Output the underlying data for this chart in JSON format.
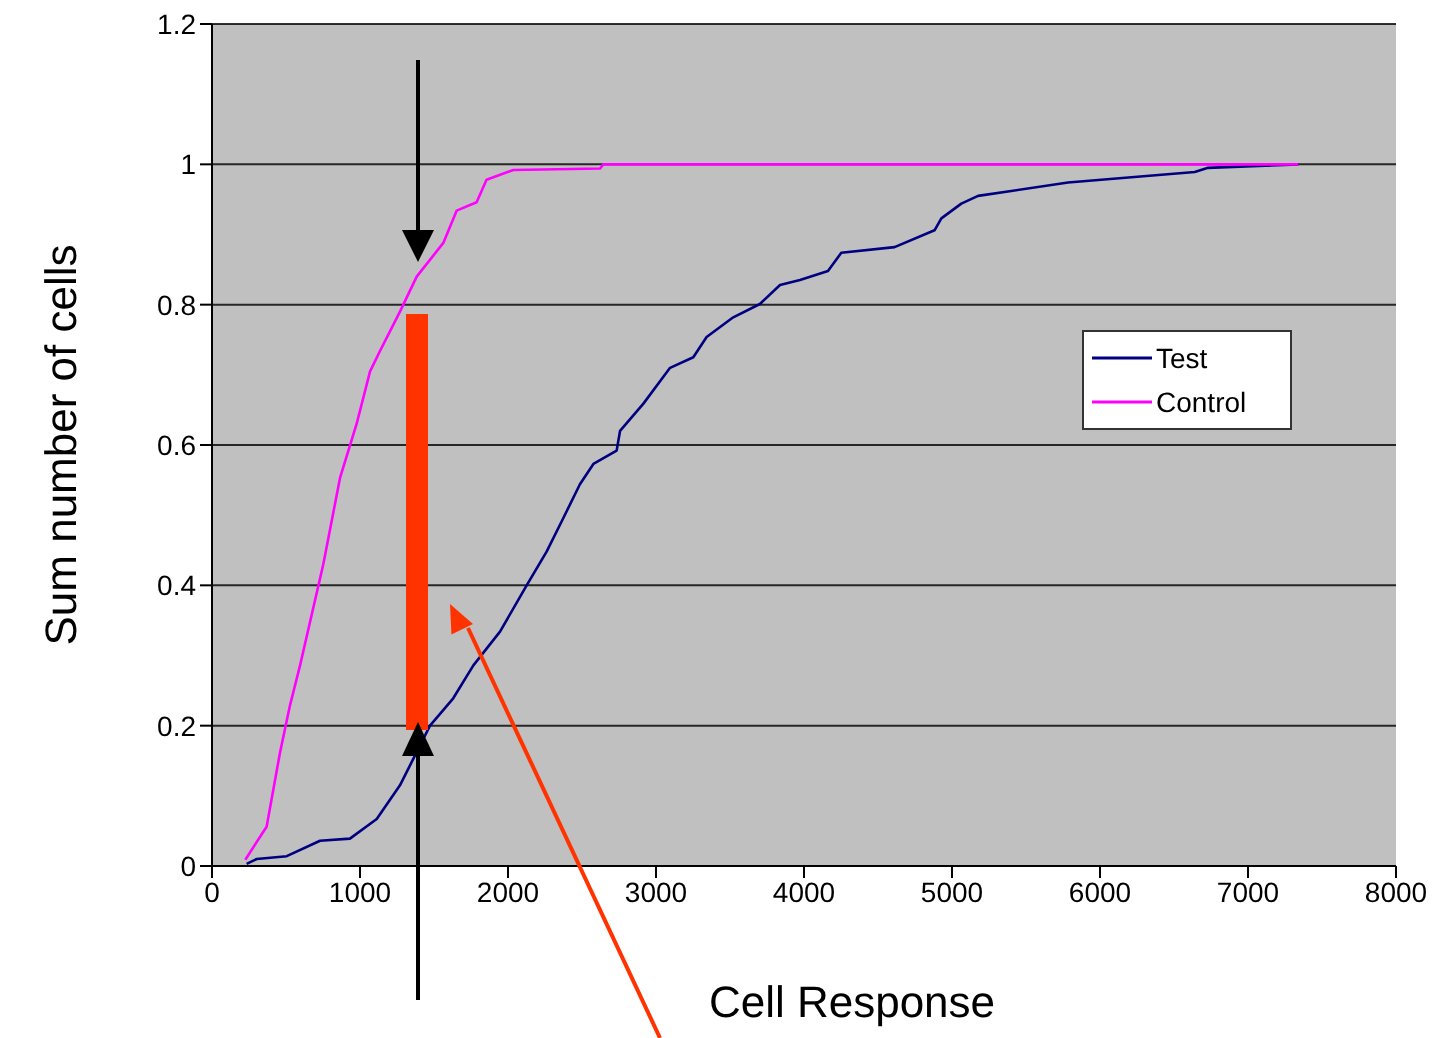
{
  "chart_data": {
    "type": "line",
    "xlabel": "Cell Response",
    "ylabel": "Sum number of cells",
    "xlim": [
      0,
      8000
    ],
    "xticks": [
      0,
      1000,
      2000,
      3000,
      4000,
      5000,
      6000,
      7000,
      8000
    ],
    "ylim": [
      0,
      1.2
    ],
    "yticks": [
      0,
      0.2,
      0.4,
      0.6,
      0.8,
      1,
      1.2
    ],
    "grid": "y",
    "legend": "right",
    "series": [
      {
        "name": "Test",
        "color": "#000080",
        "x": [
          234,
          302,
          505,
          730,
          932,
          1113,
          1270,
          1473,
          1630,
          1766,
          1946,
          2126,
          2261,
          2374,
          2486,
          2577,
          2734,
          2757,
          2915,
          3095,
          3252,
          3342,
          3522,
          3702,
          3838,
          3973,
          4162,
          4252,
          4612,
          4882,
          4928,
          5063,
          5176,
          5784,
          6640,
          6730,
          7340
        ],
        "values": [
          0.003,
          0.01,
          0.014,
          0.036,
          0.039,
          0.067,
          0.115,
          0.2,
          0.239,
          0.286,
          0.334,
          0.4,
          0.448,
          0.496,
          0.544,
          0.573,
          0.592,
          0.62,
          0.659,
          0.71,
          0.725,
          0.754,
          0.782,
          0.801,
          0.828,
          0.835,
          0.848,
          0.874,
          0.882,
          0.906,
          0.923,
          0.944,
          0.955,
          0.974,
          0.989,
          0.995,
          1.0
        ]
      },
      {
        "name": "Control",
        "color": "#ff00ff",
        "x": [
          225,
          369,
          459,
          527,
          595,
          752,
          865,
          977,
          1068,
          1135,
          1270,
          1383,
          1563,
          1653,
          1788,
          1855,
          2036,
          2622,
          2644,
          7340
        ],
        "values": [
          0.009,
          0.056,
          0.161,
          0.229,
          0.286,
          0.43,
          0.553,
          0.63,
          0.705,
          0.734,
          0.79,
          0.84,
          0.888,
          0.934,
          0.946,
          0.978,
          0.992,
          0.994,
          1.0,
          1.0
        ]
      }
    ]
  }
}
